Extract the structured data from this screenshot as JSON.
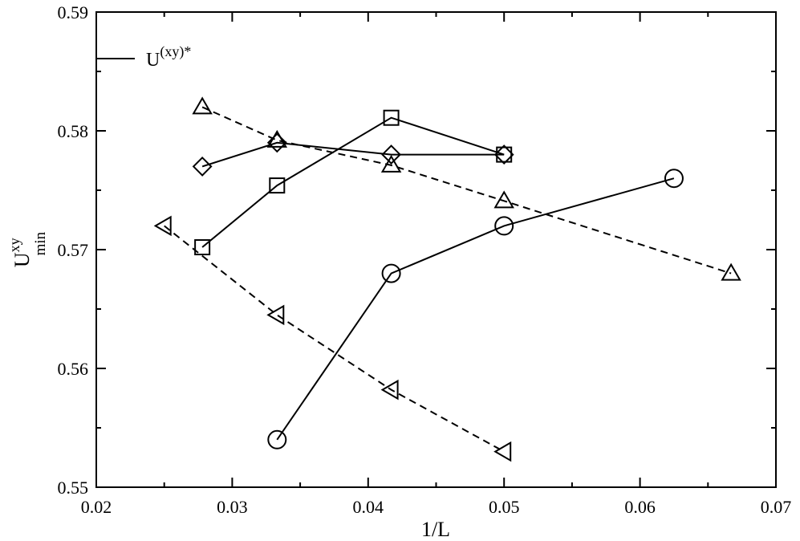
{
  "chart_data": {
    "type": "line",
    "xlabel": "1/L",
    "ylabel": "U",
    "ylabel_sup": "xy",
    "ylabel_sub": "min",
    "xlim": [
      0.02,
      0.07
    ],
    "ylim": [
      0.55,
      0.59
    ],
    "xticks": [
      0.02,
      0.03,
      0.04,
      0.05,
      0.06,
      0.07
    ],
    "yticks": [
      0.55,
      0.56,
      0.57,
      0.58,
      0.59
    ],
    "xtick_labels": [
      "0.02",
      "0.03",
      "0.04",
      "0.05",
      "0.06",
      "0.07"
    ],
    "ytick_labels": [
      "0.55",
      "0.56",
      "0.57",
      "0.58",
      "0.59"
    ],
    "grid": false,
    "legend": {
      "placement": "top-left",
      "label": "U",
      "label_sup": "(xy)*",
      "line_style": "solid"
    },
    "series": [
      {
        "marker": "circle",
        "line_style": "solid",
        "x": [
          0.0333,
          0.0417,
          0.05,
          0.0625
        ],
        "y": [
          0.554,
          0.568,
          0.572,
          0.576
        ]
      },
      {
        "marker": "square",
        "line_style": "solid",
        "x": [
          0.0278,
          0.0333,
          0.0417,
          0.05
        ],
        "y": [
          0.5702,
          0.5754,
          0.5811,
          0.578
        ]
      },
      {
        "marker": "diamond",
        "line_style": "solid",
        "x": [
          0.0278,
          0.0333,
          0.0417,
          0.05
        ],
        "y": [
          0.577,
          0.579,
          0.578,
          0.578
        ]
      },
      {
        "marker": "triangle-up",
        "line_style": "dashed",
        "x": [
          0.0278,
          0.0333,
          0.0417,
          0.05,
          0.0667
        ],
        "y": [
          0.582,
          0.5792,
          0.5771,
          0.5741,
          0.568
        ]
      },
      {
        "marker": "triangle-left",
        "line_style": "dashed",
        "x": [
          0.025,
          0.0333,
          0.0417,
          0.05
        ],
        "y": [
          0.572,
          0.5645,
          0.5582,
          0.553
        ]
      }
    ]
  }
}
